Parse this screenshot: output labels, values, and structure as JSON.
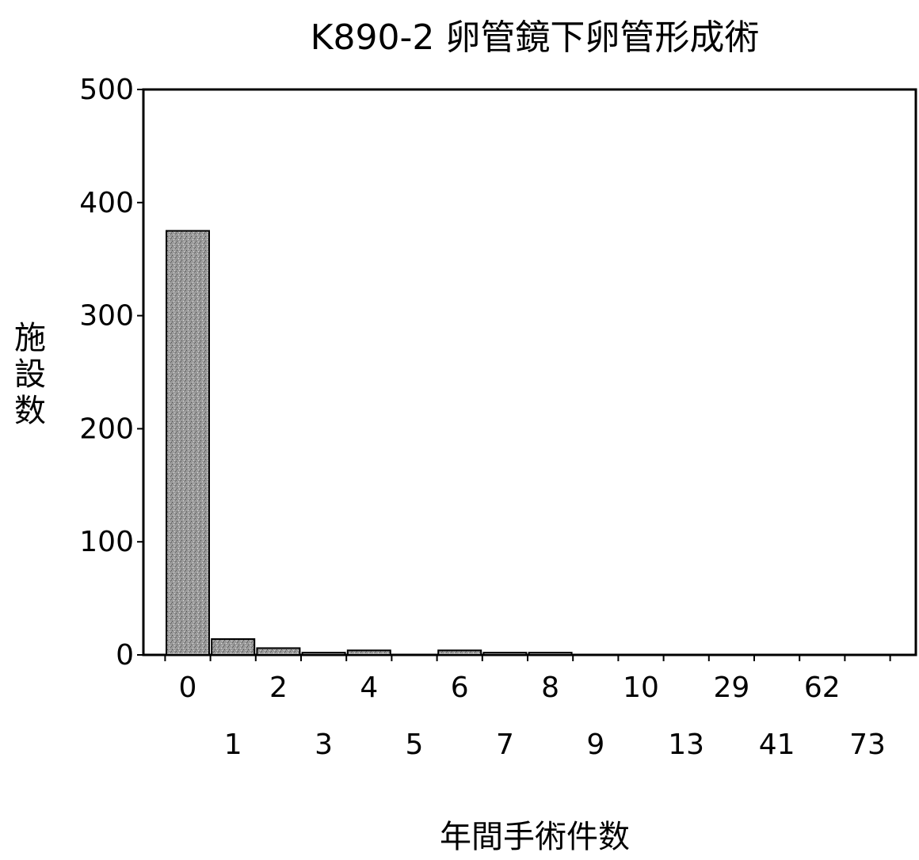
{
  "chart_data": {
    "type": "bar",
    "title": "K890-2 卵管鏡下卵管形成術",
    "xlabel": "年間手術件数",
    "ylabel": "施設数",
    "categories": [
      "0",
      "1",
      "2",
      "3",
      "4",
      "5",
      "6",
      "7",
      "8",
      "9",
      "10",
      "13",
      "29",
      "41",
      "62",
      "73"
    ],
    "values": [
      375,
      14,
      6,
      2,
      4,
      0,
      4,
      2,
      2,
      0,
      0,
      0,
      0,
      0,
      0,
      0
    ],
    "yticks": [
      0,
      100,
      200,
      300,
      400,
      500
    ],
    "ylim": [
      0,
      500
    ],
    "grid": false,
    "legend": "none",
    "colors": {
      "bar": "#9a9a9a",
      "bar_stroke": "#000000",
      "axis": "#000000"
    }
  }
}
